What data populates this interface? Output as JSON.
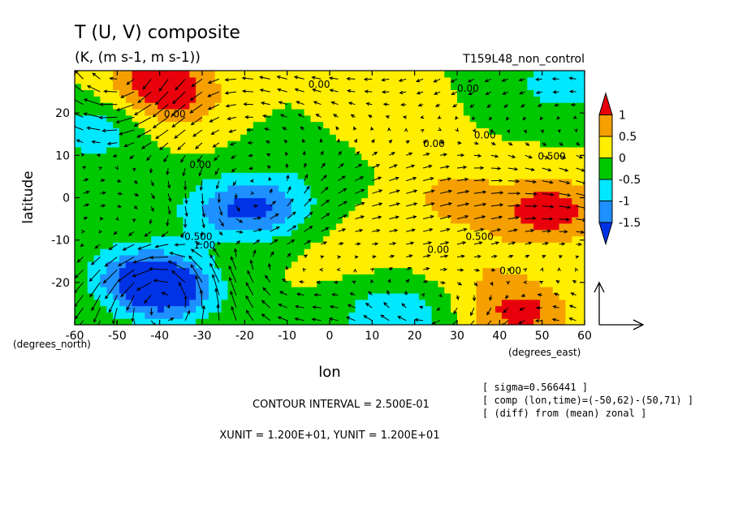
{
  "chart_data": {
    "type": "heatmap",
    "title": "T (U, V) composite",
    "subtitle": "(K, (m s-1, m s-1))",
    "experiment": "T159L48_non_control",
    "xlabel": "lon",
    "ylabel": "latitude",
    "x_unit_label": "(degrees_east)",
    "y_unit_label": "(degrees_north)",
    "xlim": [
      -60,
      60
    ],
    "ylim": [
      -30,
      30
    ],
    "x_ticks": [
      "-60",
      "-50",
      "-40",
      "-30",
      "-20",
      "-10",
      "0",
      "10",
      "20",
      "30",
      "40",
      "50",
      "60"
    ],
    "y_ticks": [
      "20",
      "10",
      "0",
      "-10",
      "-20"
    ],
    "legend": {
      "placement": "right",
      "levels": [
        "1",
        "0.5",
        "0",
        "-0.5",
        "-1",
        "-1.5"
      ],
      "colors": [
        "#e8000b",
        "#f5a000",
        "#ffee00",
        "#00c800",
        "#00e8ff",
        "#1e90ff",
        "#0032e6"
      ]
    },
    "contour_labels": [
      "0.00",
      "0.00",
      "0.00",
      "0.00",
      "0.00",
      "0.00",
      "0.500",
      "0.500",
      "-0.500",
      "1.00",
      "0.00",
      "0.00"
    ],
    "anomaly_centers": [
      {
        "lon": -40,
        "lat": 28,
        "value": 1.2
      },
      {
        "lon": -36,
        "lat": 22,
        "value": 0.6
      },
      {
        "lon": -55,
        "lat": 16,
        "value": -0.8
      },
      {
        "lon": -25,
        "lat": -3,
        "value": -0.9
      },
      {
        "lon": -15,
        "lat": -2,
        "value": -1.1
      },
      {
        "lon": -38,
        "lat": -22,
        "value": -1.7
      },
      {
        "lon": -45,
        "lat": -18,
        "value": -1.2
      },
      {
        "lon": 30,
        "lat": 0,
        "value": 0.7
      },
      {
        "lon": 52,
        "lat": -3,
        "value": 1.3
      },
      {
        "lon": 45,
        "lat": -27,
        "value": 1.2
      },
      {
        "lon": 15,
        "lat": -28,
        "value": -1.0
      },
      {
        "lon": 55,
        "lat": 27,
        "value": -0.8
      },
      {
        "lon": 10,
        "lat": 18,
        "value": 0.3
      },
      {
        "lon": -5,
        "lat": 10,
        "value": -0.3
      },
      {
        "lon": 5,
        "lat": -12,
        "value": 0.2
      },
      {
        "lon": 35,
        "lat": -15,
        "value": 0.4
      }
    ],
    "contour_interval": "CONTOUR INTERVAL = 2.500E-01",
    "vector_units": "XUNIT = 1.200E+01, YUNIT = 1.200E+01",
    "meta_lines": [
      "[ sigma=0.566441 ]",
      "[ comp (lon,time)=(-50,62)-(50,71) ]",
      "[ (diff) from (mean) zonal ]"
    ]
  }
}
